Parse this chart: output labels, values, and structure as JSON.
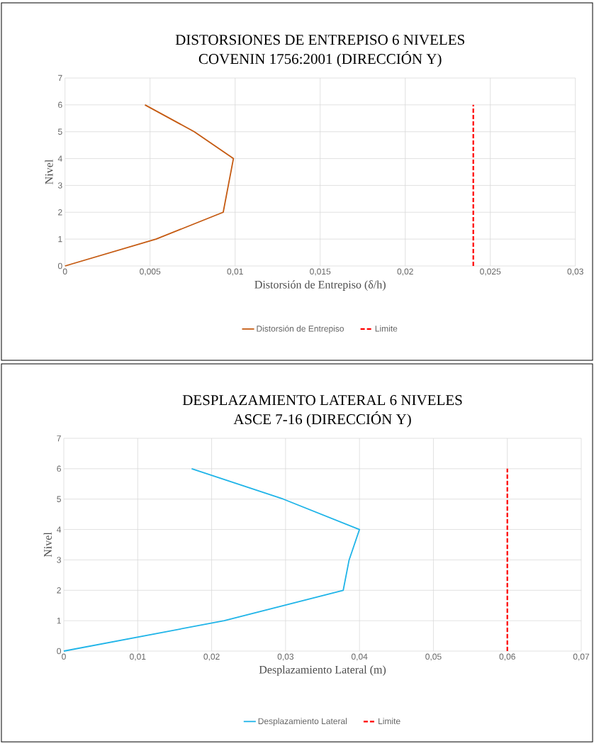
{
  "chart_data": [
    {
      "type": "line",
      "title": "DISTORSIONES DE ENTREPISO 6 NIVELES",
      "subtitle": "COVENIN 1756:2001  (DIRECCIÓN Y)",
      "xlabel": "Distorsión de Entrepiso (δ/h)",
      "ylabel": "Nivel",
      "xlim": [
        0,
        0.03
      ],
      "xticks": [
        0,
        {
          "value": 0.005,
          "label": "0,005"
        },
        {
          "value": 0.01,
          "label": "0,01"
        },
        {
          "value": 0.015,
          "label": "0,015"
        },
        {
          "value": 0.02,
          "label": "0,02"
        },
        {
          "value": 0.025,
          "label": "0,025"
        },
        {
          "value": 0.03,
          "label": "0,03"
        }
      ],
      "ylim": [
        0,
        7
      ],
      "yticks": [
        0,
        1,
        2,
        3,
        4,
        5,
        6,
        7
      ],
      "grid": true,
      "legend": "bottom",
      "series": [
        {
          "name": "Distorsión de Entrepiso",
          "color": "#c55a11",
          "x": [
            0,
            0.00535,
            0.0093,
            0.0096,
            0.0099,
            0.0076,
            0.0047
          ],
          "values": [
            0,
            1,
            2,
            3,
            4,
            5,
            6
          ],
          "line_style": "solid"
        },
        {
          "name": "Limite",
          "color": "#ff0000",
          "x": [
            0.024,
            0.024
          ],
          "values": [
            0,
            6
          ],
          "line_style": "dashed"
        }
      ]
    },
    {
      "type": "line",
      "title": "DESPLAZAMIENTO LATERAL 6 NIVELES",
      "subtitle": "ASCE 7-16 (DIRECCIÓN Y)",
      "xlabel": "Desplazamiento Lateral (m)",
      "ylabel": "Nivel",
      "xlim": [
        0,
        0.07
      ],
      "xticks": [
        0,
        {
          "value": 0.01,
          "label": "0,01"
        },
        {
          "value": 0.02,
          "label": "0,02"
        },
        {
          "value": 0.03,
          "label": "0,03"
        },
        {
          "value": 0.04,
          "label": "0,04"
        },
        {
          "value": 0.05,
          "label": "0,05"
        },
        {
          "value": 0.06,
          "label": "0,06"
        },
        {
          "value": 0.07,
          "label": "0,07"
        }
      ],
      "ylim": [
        0,
        7
      ],
      "yticks": [
        0,
        1,
        2,
        3,
        4,
        5,
        6,
        7
      ],
      "grid": true,
      "legend": "bottom",
      "series": [
        {
          "name": "Desplazamiento Lateral",
          "color": "#1fb4e8",
          "x": [
            0,
            0.0217,
            0.0378,
            0.0386,
            0.04,
            0.0297,
            0.0173
          ],
          "values": [
            0,
            1,
            2,
            3,
            4,
            5,
            6
          ],
          "line_style": "solid"
        },
        {
          "name": "Limite",
          "color": "#ff0000",
          "x": [
            0.06,
            0.06
          ],
          "values": [
            0,
            6
          ],
          "line_style": "dashed"
        }
      ]
    }
  ]
}
